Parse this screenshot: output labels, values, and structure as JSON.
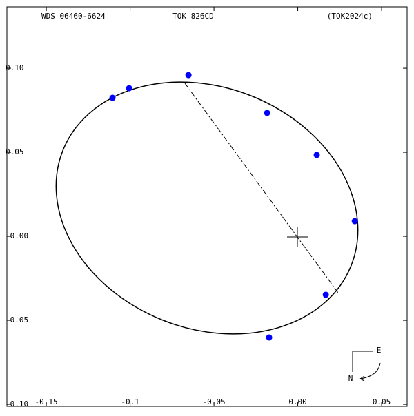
{
  "chart_data": {
    "type": "scatter",
    "title": "WDS 06460-6624",
    "subtitle": "TOK 826CD",
    "annotation": "(TOK2024c)",
    "compass_east": "E",
    "compass_north": "N",
    "series": [
      {
        "color": "#0000ff",
        "x": [
          -0.0652,
          -0.1006,
          -0.1105,
          -0.0183,
          0.0113,
          0.034,
          0.0167,
          -0.0171
        ],
        "values": [
          0.0959,
          0.0881,
          0.0824,
          0.0734,
          0.0484,
          0.009,
          -0.0348,
          -0.0602
        ]
      }
    ],
    "xlim": [
      -0.1735,
      0.0652
    ],
    "ylim": [
      -0.1012,
      0.1365
    ],
    "xticks": [
      -0.15,
      -0.1,
      -0.05,
      {
        "value": 0,
        "label": "0.00"
      },
      0.05
    ],
    "yticks": [
      {
        "value": 0.1,
        "label": "0.10"
      },
      0.05,
      {
        "value": 0,
        "label": "-0.00"
      },
      -0.05,
      {
        "value": -0.1,
        "label": "-0.10"
      }
    ],
    "grid": false
  }
}
